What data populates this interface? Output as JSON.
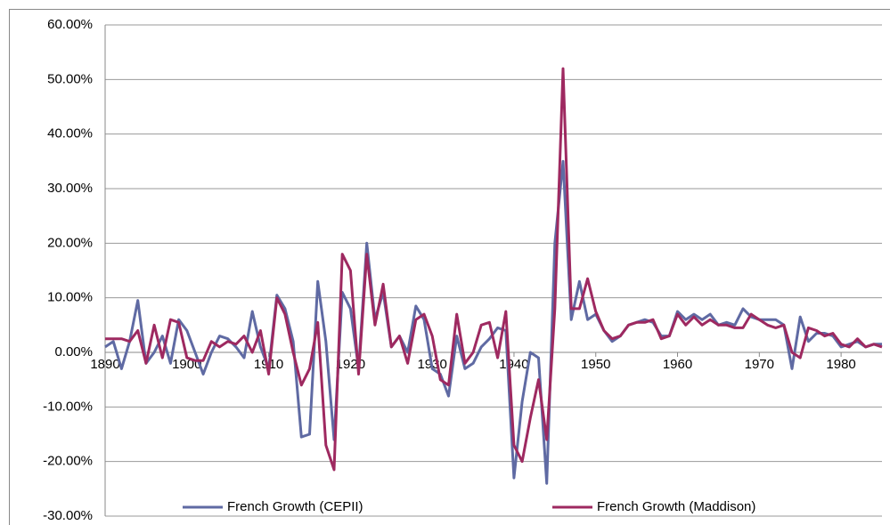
{
  "chart_data": {
    "type": "line",
    "x": [
      1890,
      1891,
      1892,
      1893,
      1894,
      1895,
      1896,
      1897,
      1898,
      1899,
      1900,
      1901,
      1902,
      1903,
      1904,
      1905,
      1906,
      1907,
      1908,
      1909,
      1910,
      1911,
      1912,
      1913,
      1914,
      1915,
      1916,
      1917,
      1918,
      1919,
      1920,
      1921,
      1922,
      1923,
      1924,
      1925,
      1926,
      1927,
      1928,
      1929,
      1930,
      1931,
      1932,
      1933,
      1934,
      1935,
      1936,
      1937,
      1938,
      1939,
      1940,
      1941,
      1942,
      1943,
      1944,
      1945,
      1946,
      1947,
      1948,
      1949,
      1950,
      1951,
      1952,
      1953,
      1954,
      1955,
      1956,
      1957,
      1958,
      1959,
      1960,
      1961,
      1962,
      1963,
      1964,
      1965,
      1966,
      1967,
      1968,
      1969,
      1970,
      1971,
      1972,
      1973,
      1974,
      1975,
      1976,
      1977,
      1978,
      1979,
      1980,
      1981,
      1982,
      1983,
      1984,
      1985
    ],
    "series": [
      {
        "name": "French Growth (CEPII)",
        "color": "#5f6aa3",
        "values": [
          1,
          2,
          -3,
          2,
          9.5,
          -2,
          0,
          3,
          -2,
          6,
          4,
          0,
          -4,
          0,
          3,
          2.5,
          1,
          -1,
          7.5,
          1,
          -3,
          10.5,
          8,
          2,
          -15.5,
          -15,
          13,
          2,
          -16,
          11,
          8,
          -3,
          20,
          6,
          11,
          1,
          3,
          0,
          8.5,
          6,
          -3,
          -4,
          -8,
          3,
          -3,
          -2,
          1,
          2.5,
          4.5,
          4,
          -23,
          -9,
          0,
          -1,
          -24,
          20,
          35,
          6,
          13,
          6,
          7,
          4,
          2,
          3,
          5,
          5.5,
          6,
          5.5,
          3,
          3,
          7.5,
          6,
          7,
          6,
          7,
          5,
          5.5,
          5,
          8,
          6.5,
          6,
          6,
          6,
          5,
          -3,
          6.5,
          2,
          3.5,
          3.5,
          3,
          1,
          1.5,
          2,
          1,
          1.5,
          1.5
        ]
      },
      {
        "name": "French Growth  (Maddison)",
        "color": "#9e2960",
        "values": [
          2.5,
          2.5,
          2.5,
          2,
          4,
          -2,
          5,
          -1,
          6,
          5.5,
          -1,
          -1.5,
          -1.5,
          2,
          1,
          2,
          1.5,
          3,
          0,
          4,
          -4,
          10,
          7,
          0,
          -6,
          -3,
          5.5,
          -17,
          -21.5,
          18,
          15,
          -4,
          18,
          5,
          12.5,
          1,
          3,
          -2,
          6,
          7,
          3,
          -5,
          -6,
          7,
          -2,
          0,
          5,
          5.5,
          -1,
          7.5,
          -17,
          -20,
          -12,
          -5,
          -16,
          8,
          52,
          8,
          8,
          13.5,
          7.5,
          4,
          2.5,
          3,
          5,
          5.5,
          5.5,
          6,
          2.5,
          3,
          7,
          5,
          6.5,
          5,
          6,
          5,
          5,
          4.5,
          4.5,
          7,
          6,
          5,
          4.5,
          5,
          0,
          -1,
          4.5,
          4,
          3,
          3.5,
          1.5,
          1,
          2.5,
          1,
          1.5,
          1
        ]
      }
    ],
    "xlim": [
      1890,
      1985
    ],
    "xticks": [
      1890,
      1900,
      1910,
      1920,
      1930,
      1940,
      1950,
      1960,
      1970,
      1980
    ],
    "ylim": [
      -30,
      60
    ],
    "yticks": [
      {
        "value": -30,
        "label": "-30.00%"
      },
      {
        "value": -20,
        "label": "-20.00%"
      },
      {
        "value": -10,
        "label": "-10.00%"
      },
      {
        "value": 0,
        "label": "0.00%"
      },
      {
        "value": 10,
        "label": "10.00%"
      },
      {
        "value": 20,
        "label": "20.00%"
      },
      {
        "value": 30,
        "label": "30.00%"
      },
      {
        "value": 40,
        "label": "40.00%"
      },
      {
        "value": 50,
        "label": "50.00%"
      },
      {
        "value": 60,
        "label": "60.00%"
      }
    ],
    "grid": true,
    "legend": "bottom"
  }
}
